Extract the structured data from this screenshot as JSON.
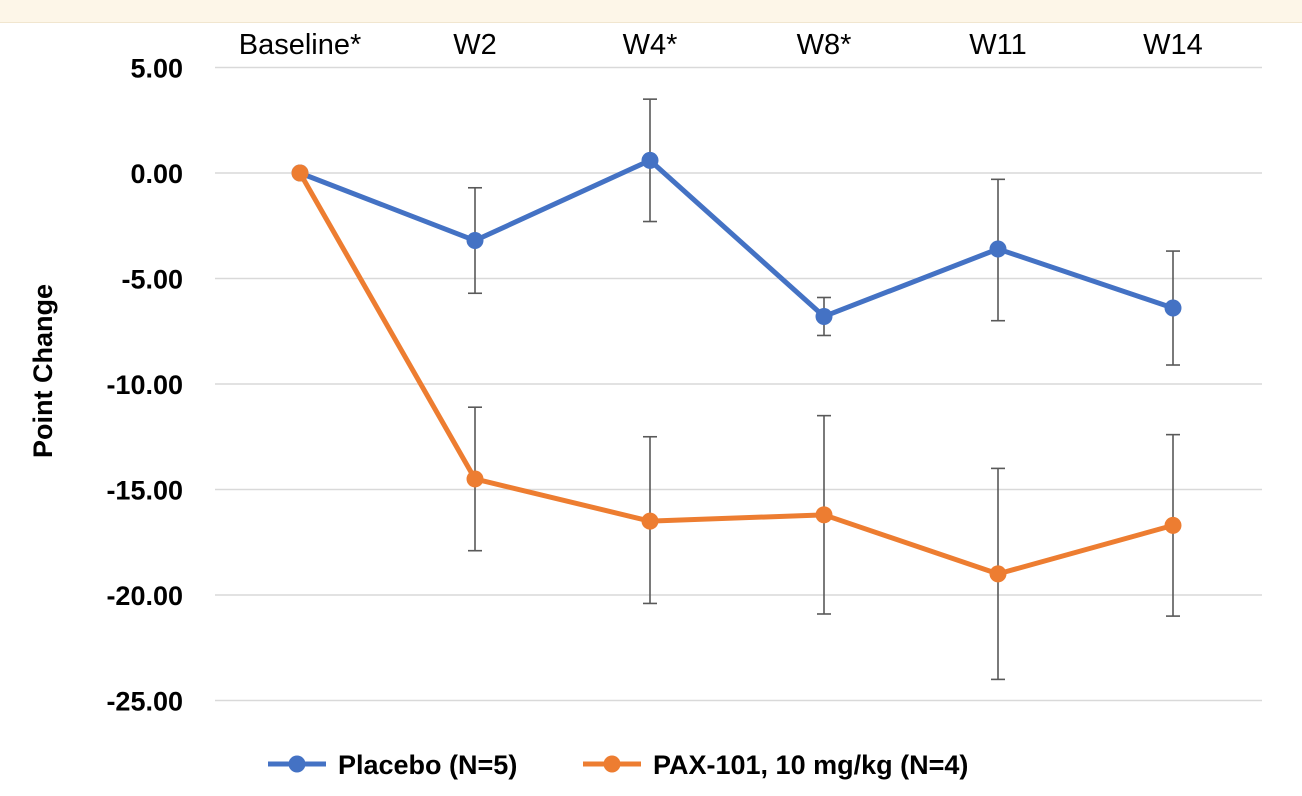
{
  "chart_data": {
    "type": "line",
    "title": "",
    "xlabel": "",
    "ylabel": "Point Change",
    "categories": [
      "Baseline*",
      "W2",
      "W4*",
      "W8*",
      "W11",
      "W14"
    ],
    "ylim": [
      -25,
      5
    ],
    "yticks": [
      5,
      0,
      -5,
      -10,
      -15,
      -20,
      -25
    ],
    "ytick_labels": [
      "5.00",
      "0.00",
      "-5.00",
      "-10.00",
      "-15.00",
      "-20.00",
      "-25.00"
    ],
    "grid": true,
    "x_axis_position": "top",
    "legend_position": "bottom",
    "series": [
      {
        "name": "Placebo (N=5)",
        "color": "#4472C4",
        "values": [
          0.0,
          -3.2,
          0.6,
          -6.8,
          -3.6,
          -6.4
        ],
        "error_low": [
          null,
          -5.7,
          -2.3,
          -7.7,
          -7.0,
          -9.1
        ],
        "error_high": [
          null,
          -0.7,
          3.5,
          -5.9,
          -0.3,
          -3.7
        ]
      },
      {
        "name": "PAX-101, 10 mg/kg (N=4)",
        "color": "#ED7D31",
        "values": [
          0.0,
          -14.5,
          -16.5,
          -16.2,
          -19.0,
          -16.7
        ],
        "error_low": [
          null,
          -17.9,
          -20.4,
          -20.9,
          -24.0,
          -21.0
        ],
        "error_high": [
          null,
          -11.1,
          -12.5,
          -11.5,
          -14.0,
          -12.4
        ]
      }
    ]
  }
}
